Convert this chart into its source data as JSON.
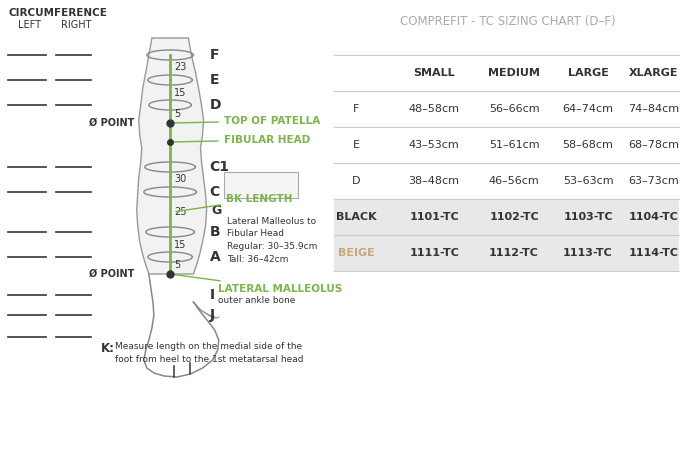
{
  "title": "COMPREFIT - TC SIZING CHART (D–F)",
  "bg_color": "#ffffff",
  "table_header_row": [
    "",
    "SMALL",
    "MEDIUM",
    "LARGE",
    "XLARGE"
  ],
  "table_rows": [
    [
      "F",
      "48–58cm",
      "56–66cm",
      "64–74cm",
      "74–84cm"
    ],
    [
      "E",
      "43–53cm",
      "51–61cm",
      "58–68cm",
      "68–78cm"
    ],
    [
      "D",
      "38–48cm",
      "46–56cm",
      "53–63cm",
      "63–73cm"
    ],
    [
      "BLACK",
      "1101-TC",
      "1102-TC",
      "1103-TC",
      "1104-TC"
    ],
    [
      "BEIGE",
      "1111-TC",
      "1112-TC",
      "1113-TC",
      "1114-TC"
    ]
  ],
  "title_color": "#aaaaaa",
  "header_text_color": "#333333",
  "shaded_row_color": "#e8e8e8",
  "black_label_color": "#333333",
  "beige_label_color": "#c8a87a",
  "green_color": "#7ab648",
  "diagram_title": "CIRCUMFERENCE",
  "left_label": "LEFT",
  "right_label": "RIGHT",
  "annotation_top_patella": "TOP OF PATELLA",
  "annotation_fibular": "FIBULAR HEAD",
  "annotation_bk": "BK LENGTH",
  "annotation_bk_detail": "Lateral Malleolus to\nFibular Head\nRegular: 30–35.9cm\nTall: 36–42cm",
  "annotation_lateral": "LATERAL MALLEOLUS",
  "annotation_lateral_sub": "outer ankle bone",
  "k_label": "K:",
  "k_text": "Measure length on the medial side of the\nfoot from heel to the 1st metatarsal head"
}
